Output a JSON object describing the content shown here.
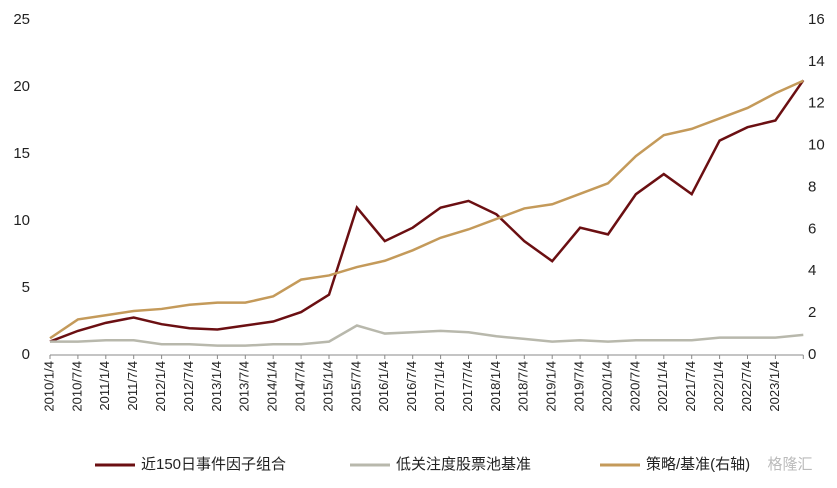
{
  "chart_data": {
    "type": "line",
    "categories": [
      "2010/1/4",
      "2010/7/4",
      "2011/1/4",
      "2011/7/4",
      "2012/1/4",
      "2012/7/4",
      "2013/1/4",
      "2013/7/4",
      "2014/1/4",
      "2014/7/4",
      "2015/1/4",
      "2015/7/4",
      "2016/1/4",
      "2016/7/4",
      "2017/1/4",
      "2017/7/4",
      "2018/1/4",
      "2018/7/4",
      "2019/1/4",
      "2019/7/4",
      "2020/1/4",
      "2020/7/4",
      "2021/1/4",
      "2021/7/4",
      "2022/1/4",
      "2022/7/4",
      "2023/1/4",
      null
    ],
    "series": [
      {
        "name": "近150日事件因子组合",
        "color": "#6b0f12",
        "values": [
          1.0,
          1.8,
          2.4,
          2.8,
          2.3,
          2.0,
          1.9,
          2.2,
          2.5,
          3.2,
          4.5,
          11.0,
          8.5,
          9.5,
          11.0,
          11.5,
          10.5,
          8.5,
          7.0,
          9.5,
          9.0,
          12.0,
          13.5,
          12.0,
          16.0,
          17.0,
          17.5,
          20.5
        ]
      },
      {
        "name": "低关注度股票池基准",
        "color": "#b8b8ac",
        "values": [
          1.0,
          1.0,
          1.1,
          1.1,
          0.8,
          0.8,
          0.7,
          0.7,
          0.8,
          0.8,
          1.0,
          2.2,
          1.6,
          1.7,
          1.8,
          1.7,
          1.4,
          1.2,
          1.0,
          1.1,
          1.0,
          1.1,
          1.1,
          1.1,
          1.3,
          1.3,
          1.3,
          1.5
        ]
      },
      {
        "name": "策略/基准(右轴)",
        "color": "#c49a5a",
        "axis": "y2",
        "values": [
          0.8,
          1.7,
          1.9,
          2.1,
          2.2,
          2.4,
          2.5,
          2.5,
          2.8,
          3.6,
          3.8,
          4.2,
          4.5,
          5.0,
          5.6,
          6.0,
          6.5,
          7.0,
          7.2,
          7.7,
          8.2,
          9.5,
          10.5,
          10.8,
          11.3,
          11.8,
          12.5,
          13.1
        ]
      }
    ],
    "ylim": [
      0,
      25
    ],
    "yticks": [
      0,
      5,
      10,
      15,
      20,
      25
    ],
    "y2lim": [
      0,
      16
    ],
    "y2ticks": [
      0,
      2,
      4,
      6,
      8,
      10,
      12,
      14,
      16
    ],
    "watermark": "格隆汇"
  }
}
